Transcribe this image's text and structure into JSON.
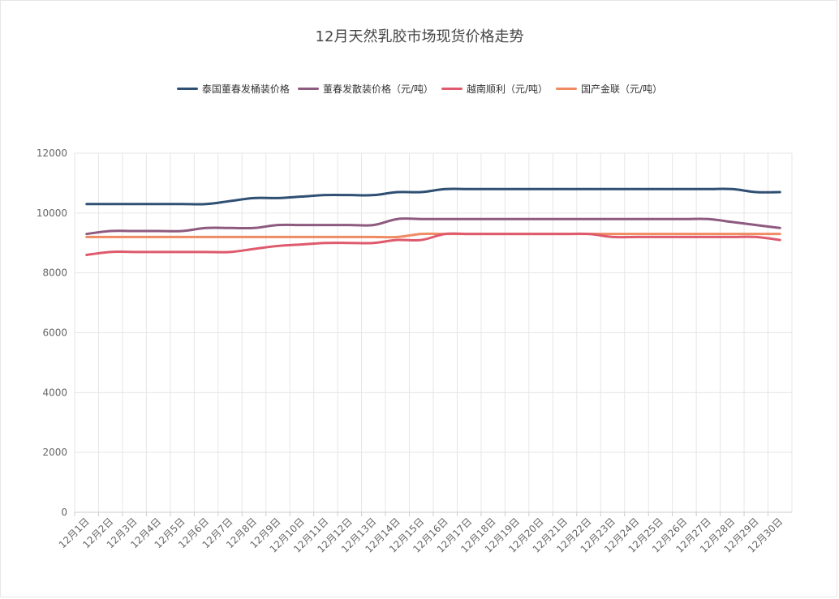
{
  "chart_data": {
    "type": "line",
    "title": "12月天然乳胶市场现货价格走势",
    "xlabel": "",
    "ylabel": "",
    "ylim": [
      0,
      12000
    ],
    "yticks": [
      0,
      2000,
      4000,
      6000,
      8000,
      10000,
      12000
    ],
    "grid": true,
    "legend_position": "top-center",
    "categories": [
      "12月1日",
      "12月2日",
      "12月3日",
      "12月4日",
      "12月5日",
      "12月6日",
      "12月7日",
      "12月8日",
      "12月9日",
      "12月10日",
      "12月11日",
      "12月12日",
      "12月13日",
      "12月14日",
      "12月15日",
      "12月16日",
      "12月17日",
      "12月18日",
      "12月19日",
      "12月20日",
      "12月21日",
      "12月22日",
      "12月23日",
      "12月24日",
      "12月25日",
      "12月26日",
      "12月27日",
      "12月28日",
      "12月29日",
      "12月30日"
    ],
    "series": [
      {
        "name": "泰国董春发桶装价格",
        "color": "#2f4f73",
        "values": [
          10300,
          10300,
          10300,
          10300,
          10300,
          10300,
          10400,
          10500,
          10500,
          10550,
          10600,
          10600,
          10600,
          10700,
          10700,
          10800,
          10800,
          10800,
          10800,
          10800,
          10800,
          10800,
          10800,
          10800,
          10800,
          10800,
          10800,
          10800,
          10700,
          10700
        ]
      },
      {
        "name": "董春发散装价格（元/吨）",
        "color": "#8e5a7f",
        "values": [
          9300,
          9400,
          9400,
          9400,
          9400,
          9500,
          9500,
          9500,
          9600,
          9600,
          9600,
          9600,
          9600,
          9800,
          9800,
          9800,
          9800,
          9800,
          9800,
          9800,
          9800,
          9800,
          9800,
          9800,
          9800,
          9800,
          9800,
          9700,
          9600,
          9500
        ]
      },
      {
        "name": "越南顺利（元/吨）",
        "color": "#de5a6c",
        "values": [
          8600,
          8700,
          8700,
          8700,
          8700,
          8700,
          8700,
          8800,
          8900,
          8950,
          9000,
          9000,
          9000,
          9100,
          9100,
          9300,
          9300,
          9300,
          9300,
          9300,
          9300,
          9300,
          9200,
          9200,
          9200,
          9200,
          9200,
          9200,
          9200,
          9100
        ]
      },
      {
        "name": "国产金联（元/吨）",
        "color": "#f08a62",
        "values": [
          9200,
          9200,
          9200,
          9200,
          9200,
          9200,
          9200,
          9200,
          9200,
          9200,
          9200,
          9200,
          9200,
          9200,
          9300,
          9300,
          9300,
          9300,
          9300,
          9300,
          9300,
          9300,
          9300,
          9300,
          9300,
          9300,
          9300,
          9300,
          9300,
          9300
        ]
      }
    ]
  }
}
